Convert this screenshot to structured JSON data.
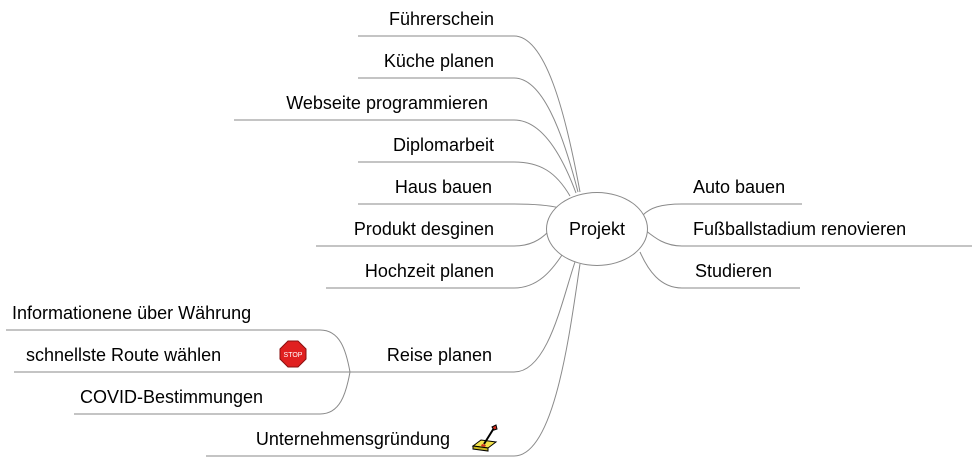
{
  "central": {
    "label": "Projekt"
  },
  "left_branches": [
    {
      "label": "Führerschein"
    },
    {
      "label": "Küche planen"
    },
    {
      "label": "Webseite programmieren"
    },
    {
      "label": "Diplomarbeit"
    },
    {
      "label": "Haus bauen"
    },
    {
      "label": "Produkt desginen"
    },
    {
      "label": "Hochzeit planen"
    },
    {
      "label": "Reise planen",
      "children": [
        {
          "label": "Informationene über Währung"
        },
        {
          "label": "schnellste Route wählen",
          "icon": "stop-sign-icon",
          "icon_text": "STOP"
        },
        {
          "label": "COVID-Bestimmungen"
        }
      ]
    },
    {
      "label": "Unternehmensgründung",
      "icon": "paint-brush-icon"
    }
  ],
  "right_branches": [
    {
      "label": "Auto bauen"
    },
    {
      "label": "Fußballstadium renovieren"
    },
    {
      "label": "Studieren"
    }
  ],
  "colors": {
    "line": "#8a8a8a",
    "stop": "#e02020"
  }
}
